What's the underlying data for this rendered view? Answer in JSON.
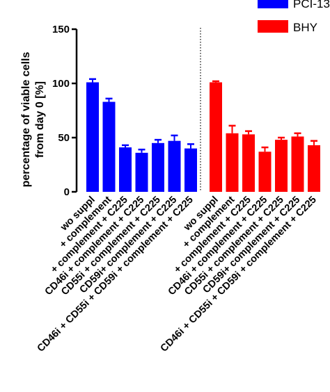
{
  "chart_data": {
    "type": "bar",
    "ylabel_line1": "percentage of viable cells",
    "ylabel_line2": "from day 0 [%]",
    "ylim": [
      0,
      150
    ],
    "yticks": [
      "0",
      "50",
      "100",
      "150"
    ],
    "grid": false,
    "legend_position": "top-right",
    "categories": [
      "wo suppl",
      "+ complement",
      "+ complement + C225",
      "CD46i + complement + C225",
      "CD55i + complement + C225",
      "CD59i+ complement + C225",
      "CD46i + CD55i + CD59i + complement + C225"
    ],
    "series": [
      {
        "name": "PCI-13",
        "color": "#0000ff",
        "values": [
          101,
          83,
          41,
          36,
          45,
          47,
          40
        ],
        "errors": [
          3,
          3,
          2,
          3,
          3,
          5,
          4
        ]
      },
      {
        "name": "BHY",
        "color": "#ff0000",
        "values": [
          101,
          54,
          53,
          37,
          48,
          51,
          43
        ],
        "errors": [
          1,
          7,
          3,
          4,
          2,
          3,
          4
        ]
      }
    ]
  }
}
